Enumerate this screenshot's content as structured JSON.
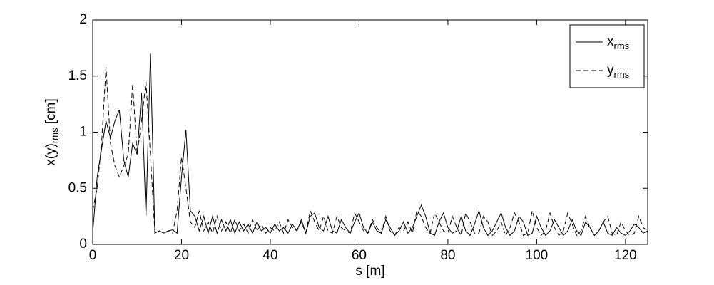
{
  "chart_data": {
    "type": "line",
    "xlabel": "s [m]",
    "ylabel_parts": [
      "x(y)",
      "rms",
      " [cm]"
    ],
    "x": [
      0,
      1,
      2,
      3,
      4,
      5,
      6,
      7,
      8,
      9,
      10,
      11,
      12,
      13,
      14,
      15,
      16,
      17,
      18,
      19,
      20,
      21,
      22,
      23,
      24,
      25,
      26,
      27,
      28,
      29,
      30,
      31,
      32,
      33,
      34,
      35,
      36,
      37,
      38,
      39,
      40,
      41,
      42,
      43,
      44,
      45,
      46,
      47,
      48,
      49,
      50,
      51,
      52,
      53,
      54,
      55,
      56,
      57,
      58,
      59,
      60,
      61,
      62,
      63,
      64,
      65,
      66,
      67,
      68,
      69,
      70,
      71,
      72,
      73,
      74,
      75,
      76,
      77,
      78,
      79,
      80,
      81,
      82,
      83,
      84,
      85,
      86,
      87,
      88,
      89,
      90,
      91,
      92,
      93,
      94,
      95,
      96,
      97,
      98,
      99,
      100,
      101,
      102,
      103,
      104,
      105,
      106,
      107,
      108,
      109,
      110,
      111,
      112,
      113,
      114,
      115,
      116,
      117,
      118,
      119,
      120,
      121,
      122,
      123,
      124,
      125
    ],
    "series": [
      {
        "name": "xrms",
        "color": "#000000",
        "dashed": false,
        "values": [
          0.1,
          0.6,
          0.85,
          1.1,
          0.95,
          1.1,
          1.2,
          0.75,
          0.6,
          0.9,
          0.8,
          1.35,
          0.25,
          1.7,
          0.1,
          0.12,
          0.1,
          0.12,
          0.13,
          0.1,
          0.6,
          1.02,
          0.3,
          0.25,
          0.12,
          0.25,
          0.1,
          0.25,
          0.1,
          0.22,
          0.12,
          0.22,
          0.1,
          0.2,
          0.12,
          0.18,
          0.1,
          0.2,
          0.12,
          0.15,
          0.1,
          0.18,
          0.12,
          0.15,
          0.1,
          0.18,
          0.12,
          0.22,
          0.1,
          0.25,
          0.28,
          0.15,
          0.12,
          0.25,
          0.12,
          0.1,
          0.22,
          0.15,
          0.1,
          0.2,
          0.28,
          0.15,
          0.1,
          0.2,
          0.12,
          0.1,
          0.22,
          0.15,
          0.08,
          0.12,
          0.2,
          0.1,
          0.15,
          0.25,
          0.35,
          0.25,
          0.1,
          0.08,
          0.2,
          0.28,
          0.15,
          0.1,
          0.12,
          0.25,
          0.12,
          0.08,
          0.18,
          0.3,
          0.15,
          0.08,
          0.12,
          0.2,
          0.28,
          0.15,
          0.08,
          0.12,
          0.25,
          0.2,
          0.08,
          0.1,
          0.25,
          0.15,
          0.08,
          0.12,
          0.22,
          0.15,
          0.08,
          0.12,
          0.22,
          0.12,
          0.08,
          0.2,
          0.15,
          0.08,
          0.12,
          0.2,
          0.1,
          0.08,
          0.15,
          0.1,
          0.08,
          0.12,
          0.18,
          0.15,
          0.1,
          0.12
        ]
      },
      {
        "name": "yrms",
        "color": "#000000",
        "dashed": true,
        "values": [
          0.3,
          0.5,
          0.9,
          1.58,
          0.9,
          0.7,
          0.6,
          0.7,
          0.8,
          1.43,
          0.8,
          1.1,
          1.45,
          0.8,
          0.1,
          0.12,
          0.1,
          0.12,
          0.1,
          0.3,
          0.78,
          0.5,
          0.2,
          0.15,
          0.3,
          0.12,
          0.2,
          0.1,
          0.25,
          0.12,
          0.2,
          0.1,
          0.22,
          0.12,
          0.18,
          0.1,
          0.22,
          0.12,
          0.18,
          0.1,
          0.15,
          0.12,
          0.2,
          0.1,
          0.22,
          0.15,
          0.12,
          0.2,
          0.1,
          0.3,
          0.2,
          0.12,
          0.25,
          0.12,
          0.1,
          0.25,
          0.15,
          0.12,
          0.1,
          0.28,
          0.2,
          0.12,
          0.1,
          0.22,
          0.15,
          0.1,
          0.25,
          0.12,
          0.08,
          0.15,
          0.12,
          0.2,
          0.1,
          0.3,
          0.25,
          0.15,
          0.1,
          0.28,
          0.2,
          0.12,
          0.1,
          0.25,
          0.15,
          0.08,
          0.28,
          0.2,
          0.1,
          0.1,
          0.25,
          0.2,
          0.08,
          0.12,
          0.2,
          0.08,
          0.15,
          0.28,
          0.2,
          0.08,
          0.1,
          0.3,
          0.15,
          0.08,
          0.12,
          0.28,
          0.15,
          0.08,
          0.12,
          0.28,
          0.18,
          0.08,
          0.12,
          0.25,
          0.15,
          0.08,
          0.12,
          0.2,
          0.25,
          0.1,
          0.08,
          0.2,
          0.12,
          0.08,
          0.1,
          0.25,
          0.15,
          0.12
        ]
      }
    ],
    "xlim": [
      0,
      125
    ],
    "xticks": [
      0,
      20,
      40,
      60,
      80,
      100,
      120
    ],
    "ylim": [
      0,
      2
    ],
    "yticks": [
      0,
      0.5,
      1,
      1.5,
      2
    ],
    "grid": false,
    "legend": "top-right"
  }
}
